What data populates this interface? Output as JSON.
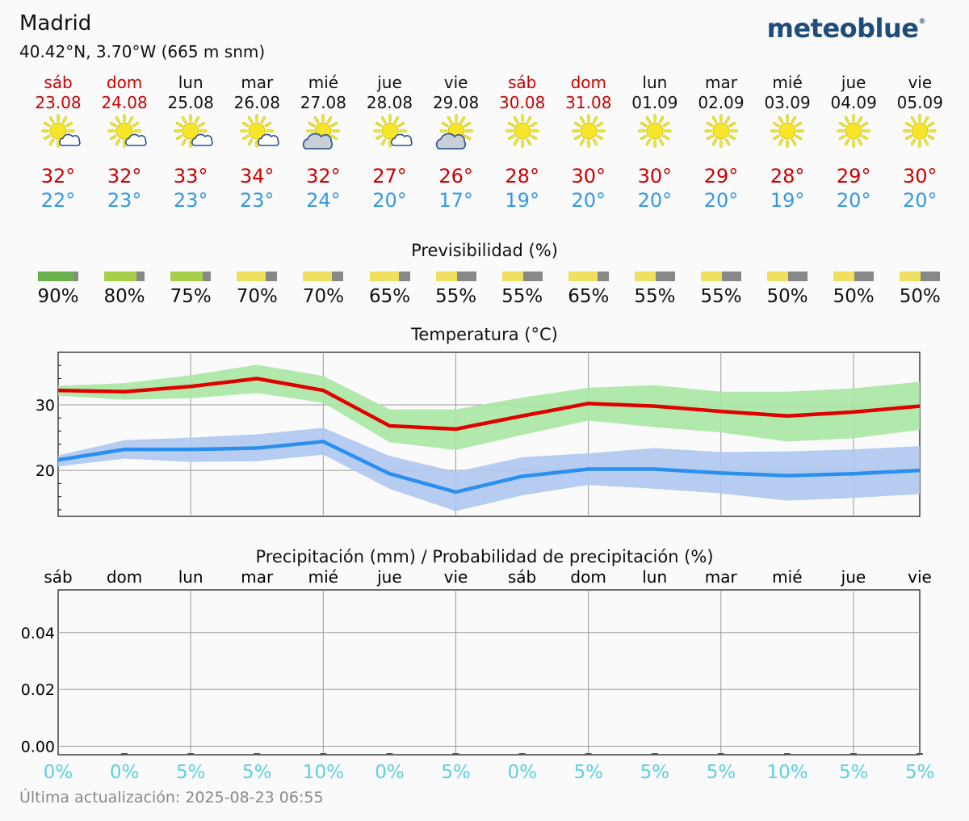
{
  "header": {
    "city": "Madrid",
    "coords": "40.42°N, 3.70°W (665 m snm)",
    "logo": "meteoblue"
  },
  "days": [
    {
      "name": "sáb",
      "date": "23.08",
      "weekend": true,
      "icon": "sun-cloud-icon",
      "tmax": "32°",
      "tmin": "22°"
    },
    {
      "name": "dom",
      "date": "24.08",
      "weekend": true,
      "icon": "sun-cloud-icon",
      "tmax": "32°",
      "tmin": "23°"
    },
    {
      "name": "lun",
      "date": "25.08",
      "weekend": false,
      "icon": "sun-cloud-icon",
      "tmax": "33°",
      "tmin": "23°"
    },
    {
      "name": "mar",
      "date": "26.08",
      "weekend": false,
      "icon": "sun-cloud-icon",
      "tmax": "34°",
      "tmin": "23°"
    },
    {
      "name": "mié",
      "date": "27.08",
      "weekend": false,
      "icon": "cloud-sun-icon",
      "tmax": "32°",
      "tmin": "24°"
    },
    {
      "name": "jue",
      "date": "28.08",
      "weekend": false,
      "icon": "sun-cloud-icon",
      "tmax": "27°",
      "tmin": "20°"
    },
    {
      "name": "vie",
      "date": "29.08",
      "weekend": false,
      "icon": "cloud-sun-icon",
      "tmax": "26°",
      "tmin": "17°"
    },
    {
      "name": "sáb",
      "date": "30.08",
      "weekend": true,
      "icon": "sun-icon",
      "tmax": "28°",
      "tmin": "19°"
    },
    {
      "name": "dom",
      "date": "31.08",
      "weekend": true,
      "icon": "sun-icon",
      "tmax": "30°",
      "tmin": "20°"
    },
    {
      "name": "lun",
      "date": "01.09",
      "weekend": false,
      "icon": "sun-icon",
      "tmax": "30°",
      "tmin": "20°"
    },
    {
      "name": "mar",
      "date": "02.09",
      "weekend": false,
      "icon": "sun-icon",
      "tmax": "29°",
      "tmin": "20°"
    },
    {
      "name": "mié",
      "date": "03.09",
      "weekend": false,
      "icon": "sun-icon",
      "tmax": "28°",
      "tmin": "19°"
    },
    {
      "name": "jue",
      "date": "04.09",
      "weekend": false,
      "icon": "sun-icon",
      "tmax": "29°",
      "tmin": "20°"
    },
    {
      "name": "vie",
      "date": "05.09",
      "weekend": false,
      "icon": "sun-icon",
      "tmax": "30°",
      "tmin": "20°"
    }
  ],
  "predictability": {
    "title": "Previsibilidad (%)",
    "labels": [
      "90%",
      "80%",
      "75%",
      "70%",
      "70%",
      "65%",
      "55%",
      "55%",
      "65%",
      "55%",
      "55%",
      "50%",
      "50%",
      "50%"
    ],
    "values": [
      90,
      80,
      75,
      70,
      70,
      65,
      55,
      55,
      65,
      55,
      55,
      50,
      50,
      50
    ]
  },
  "chart_data": [
    {
      "type": "line",
      "title": "Temperatura (°C)",
      "x": [
        "sáb",
        "dom",
        "lun",
        "mar",
        "mié",
        "jue",
        "vie",
        "sáb",
        "dom",
        "lun",
        "mar",
        "mié",
        "jue",
        "vie"
      ],
      "ylim": [
        13,
        38
      ],
      "yticks": [
        20,
        30
      ],
      "series": [
        {
          "values": [
            32.2,
            32.0,
            32.8,
            34.0,
            32.2,
            26.8,
            26.3,
            28.3,
            30.2,
            29.8,
            29.0,
            28.3,
            28.9,
            29.8
          ],
          "color": "#e00000",
          "band_low": [
            31.4,
            30.8,
            31.0,
            31.8,
            30.3,
            24.3,
            23.1,
            25.4,
            27.6,
            26.6,
            25.8,
            24.4,
            24.9,
            26.2
          ],
          "band_high": [
            32.9,
            33.3,
            34.5,
            36.1,
            34.4,
            29.3,
            29.3,
            31.1,
            32.6,
            33.0,
            32.0,
            32.0,
            32.5,
            33.5
          ],
          "band_color": "#a8e6a3"
        },
        {
          "values": [
            21.6,
            23.2,
            23.2,
            23.4,
            24.4,
            19.5,
            16.7,
            19.1,
            20.2,
            20.2,
            19.6,
            19.2,
            19.5,
            20.0
          ],
          "color": "#2b8ff0",
          "band_low": [
            20.6,
            21.8,
            21.3,
            21.4,
            22.4,
            17.2,
            13.8,
            16.2,
            17.8,
            17.2,
            16.5,
            15.4,
            15.8,
            16.4
          ],
          "band_high": [
            22.3,
            24.6,
            25.0,
            25.5,
            26.5,
            22.2,
            19.8,
            22.0,
            22.6,
            23.4,
            22.8,
            22.9,
            23.2,
            23.7
          ],
          "band_color": "#aec6f0"
        }
      ]
    },
    {
      "type": "bar",
      "title": "Precipitación (mm) / Probabilidad de precipitación (%)",
      "categories": [
        "sáb",
        "dom",
        "lun",
        "mar",
        "mié",
        "jue",
        "vie",
        "sáb",
        "dom",
        "lun",
        "mar",
        "mié",
        "jue",
        "vie"
      ],
      "values": [
        0,
        0,
        0,
        0,
        0,
        0,
        0,
        0,
        0,
        0,
        0,
        0,
        0,
        0
      ],
      "probability": [
        "0%",
        "0%",
        "5%",
        "5%",
        "10%",
        "0%",
        "5%",
        "0%",
        "5%",
        "5%",
        "5%",
        "10%",
        "5%",
        "5%"
      ],
      "ylim": [
        -0.003,
        0.055
      ],
      "yticks": [
        "0.00",
        "0.02",
        "0.04"
      ],
      "ytick_values": [
        0,
        0.02,
        0.04
      ]
    }
  ],
  "footer": "Última actualización: 2025-08-23 06:55"
}
